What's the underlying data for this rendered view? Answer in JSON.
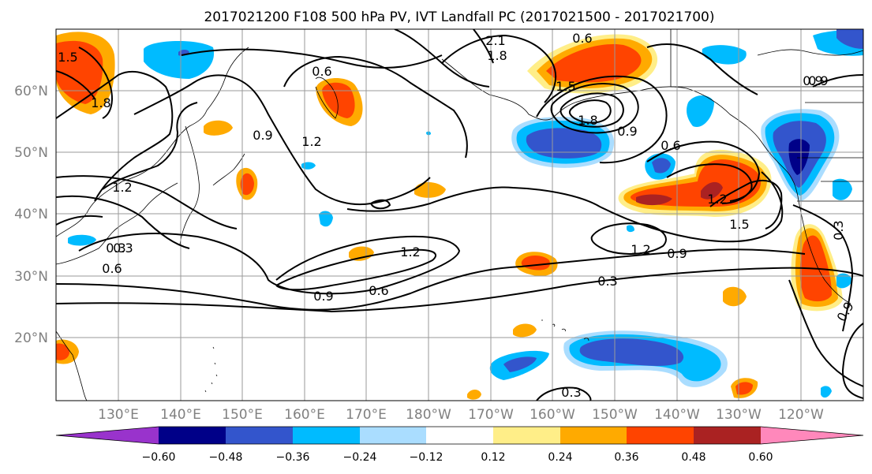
{
  "title": "2017021200 F108 500 hPa PV, IVT Landfall PC (2017021500 - 2017021700)",
  "lat_ticks": [
    "60°N",
    "50°N",
    "40°N",
    "30°N",
    "20°N"
  ],
  "lon_ticks": [
    "130°E",
    "140°E",
    "150°E",
    "160°E",
    "170°E",
    "180°W",
    "170°W",
    "160°W",
    "150°W",
    "140°W",
    "130°W",
    "120°W"
  ],
  "colorbar": {
    "ticks": [
      "−0.60",
      "−0.48",
      "−0.36",
      "−0.24",
      "−0.12",
      "0.12",
      "0.24",
      "0.36",
      "0.48",
      "0.60"
    ],
    "colors": [
      "#9933cc",
      "#000088",
      "#3355cc",
      "#00bbff",
      "#aaddff",
      "#ffffff",
      "#ffee88",
      "#ffaa00",
      "#ff4400",
      "#aa2222",
      "#ff88bb"
    ]
  },
  "contour_labels": [
    "1.5",
    "1.8",
    "0.9",
    "1.2",
    "0.6",
    "0.3",
    "2.1",
    "1.8",
    "0.6",
    "0.9",
    "1.2",
    "1.5",
    "1.8",
    "0.9",
    "0.6",
    "1.2",
    "1.5",
    "1.2",
    "0.9",
    "0.3",
    "0.9",
    "0.6",
    "1.2",
    "0.3",
    "0.3",
    "0.6",
    "0.9",
    "0.3",
    "0.9"
  ]
}
